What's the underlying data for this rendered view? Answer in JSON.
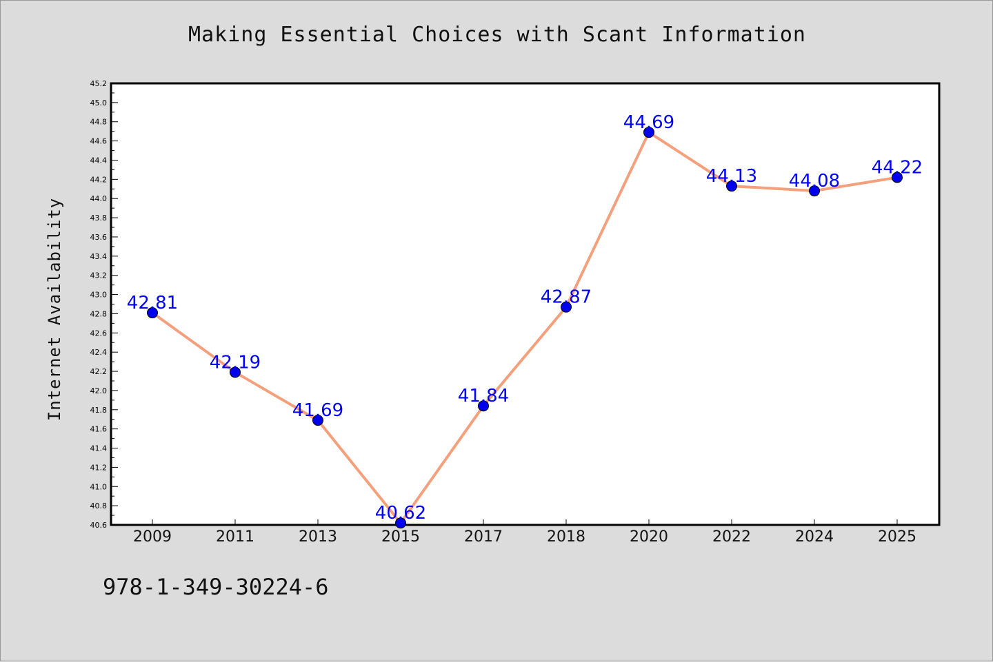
{
  "chart_data": {
    "type": "line",
    "title": "Making Essential Choices with Scant Information",
    "ylabel": "Internet Availability",
    "xlabel": "",
    "categories": [
      "2009",
      "2011",
      "2013",
      "2015",
      "2017",
      "2018",
      "2020",
      "2022",
      "2024",
      "2025"
    ],
    "series": [
      {
        "values": [
          42.81,
          42.19,
          41.69,
          40.62,
          41.84,
          42.87,
          44.69,
          44.13,
          44.08,
          44.22
        ]
      }
    ],
    "data_labels": [
      "42.81",
      "42.19",
      "41.69",
      "40.62",
      "41.84",
      "42.87",
      "44.69",
      "44.13",
      "44.08",
      "44.22"
    ],
    "ylim": [
      40.6,
      45.2
    ],
    "ytick_step": 0.2,
    "grid": false,
    "legend": "none",
    "colors": {
      "line": "#f4a07c",
      "marker": "#0000ee",
      "data_label": "#0000ff",
      "background": "#dcdcdc",
      "plot_area": "#ffffff"
    }
  },
  "footer": {
    "code": "978-1-349-30224-6"
  }
}
